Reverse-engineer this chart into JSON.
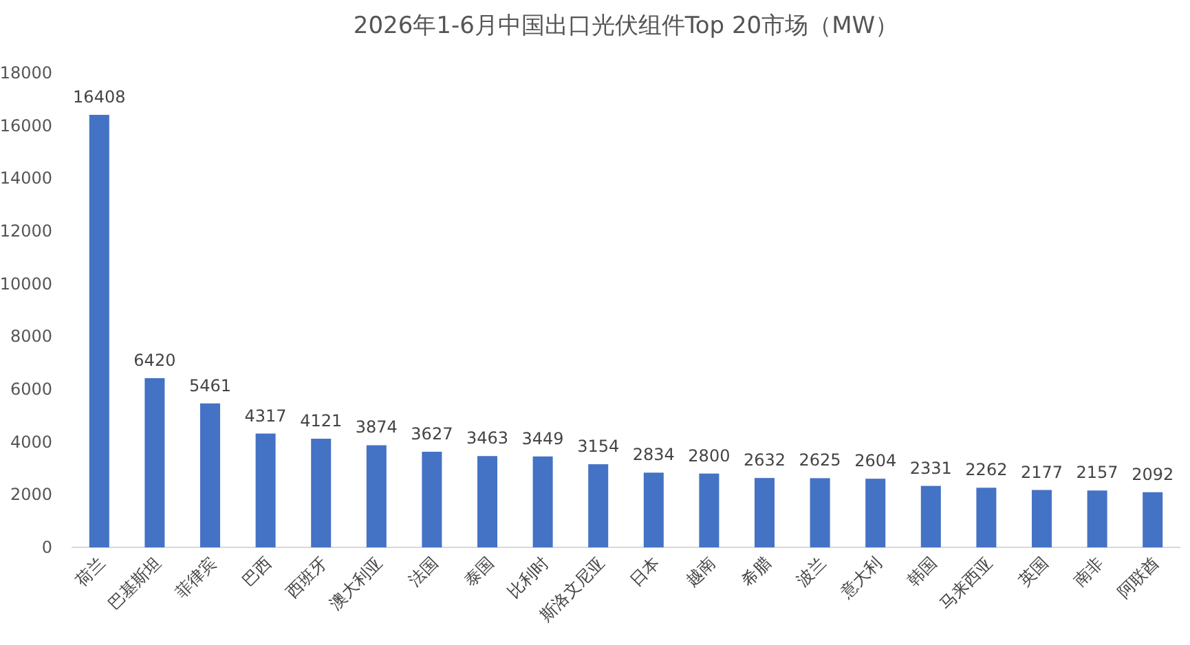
{
  "chart_data": {
    "type": "bar",
    "title": "2026年1-6月中国出口光伏组件Top 20市场（MW）",
    "categories": [
      "荷兰",
      "巴基斯坦",
      "菲律宾",
      "巴西",
      "西班牙",
      "澳大利亚",
      "法国",
      "泰国",
      "比利时",
      "斯洛文尼亚",
      "日本",
      "越南",
      "希腊",
      "波兰",
      "意大利",
      "韩国",
      "马来西亚",
      "英国",
      "南非",
      "阿联酋"
    ],
    "values": [
      16408,
      6420,
      5461,
      4317,
      4121,
      3874,
      3627,
      3463,
      3449,
      3154,
      2834,
      2800,
      2632,
      2625,
      2604,
      2331,
      2262,
      2177,
      2157,
      2092
    ],
    "color": "#4472c4",
    "ylim": [
      0,
      18000
    ],
    "yticks": [
      0,
      2000,
      4000,
      6000,
      8000,
      10000,
      12000,
      14000,
      16000,
      18000
    ],
    "data_labels": true
  }
}
